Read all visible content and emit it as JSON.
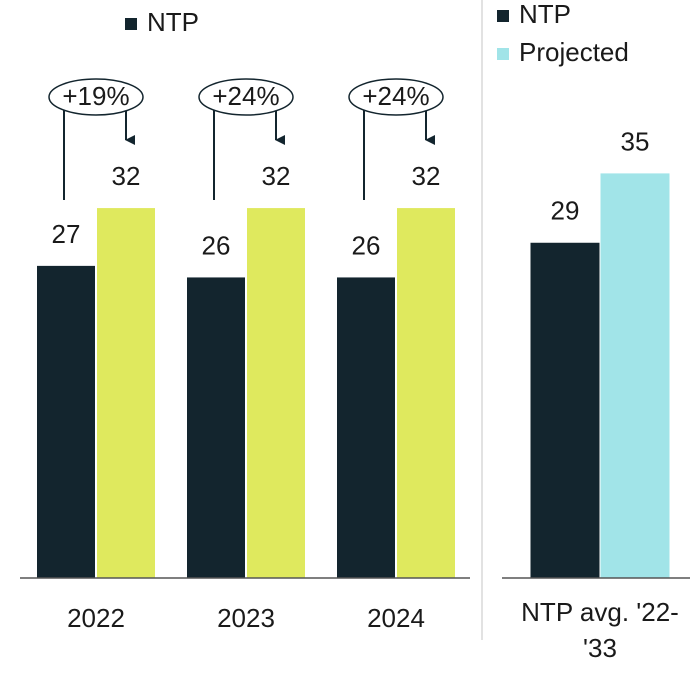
{
  "chart_data": [
    {
      "type": "bar",
      "categories": [
        "2022",
        "2023",
        "2024"
      ],
      "series": [
        {
          "name": "NTP",
          "color": "#13252e",
          "values": [
            27,
            26,
            26
          ]
        },
        {
          "color": "#dfe95e",
          "values": [
            32,
            32,
            32
          ]
        }
      ],
      "annotations": [
        "+19%",
        "+24%",
        "+24%"
      ],
      "ylim": [
        0,
        50
      ]
    },
    {
      "type": "bar",
      "categories": [
        "NTP avg. '22-'33"
      ],
      "series": [
        {
          "name": "NTP",
          "color": "#13252e",
          "values": [
            29
          ]
        },
        {
          "name": "Projected",
          "color": "#a1e4e8",
          "values": [
            35
          ]
        }
      ],
      "ylim": [
        0,
        50
      ]
    }
  ]
}
